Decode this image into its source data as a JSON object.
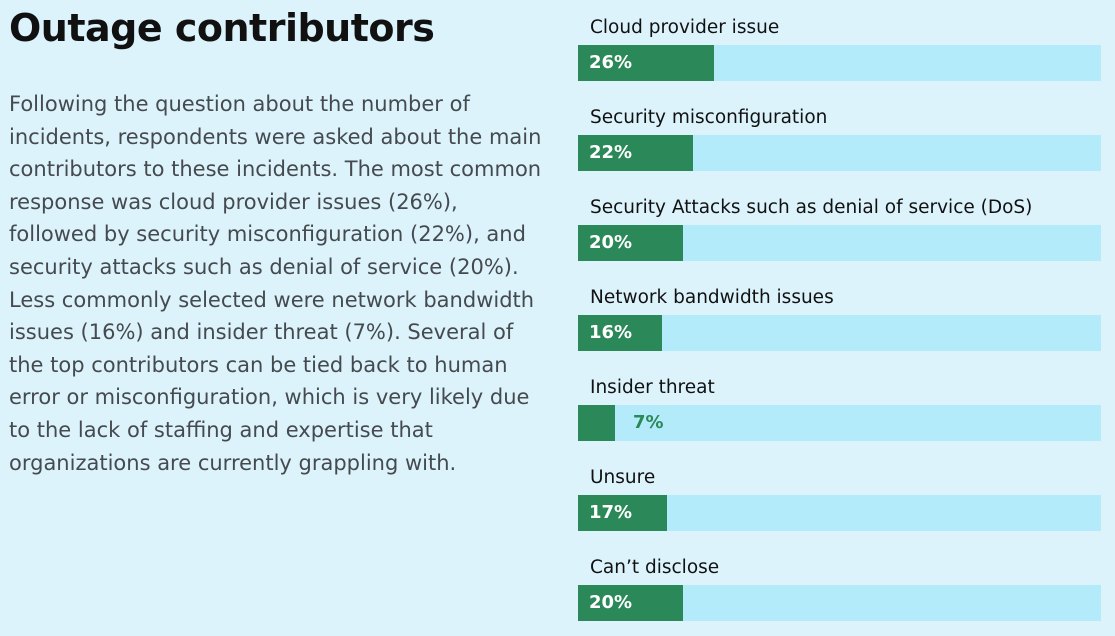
{
  "page": {
    "title": "Outage contributors",
    "body": "Following the question about the number of incidents, respondents were asked about the main contributors to these incidents. The most common response was cloud provider issues (26%), followed by security misconfiguration (22%), and security attacks such as denial of service (20%). Less commonly selected were network bandwidth issues (16%) and insider threat (7%). Several of the top contributors can be tied back to human error or misconfiguration, which is very likely due to the lack of staffing and expertise that organizations are currently grappling with."
  },
  "colors": {
    "background": "#dcf3fc",
    "bar": "#2b8858",
    "track": "#b4ebfb",
    "text": "#111111",
    "body_text": "#454a4e"
  },
  "chart_data": {
    "type": "bar",
    "orientation": "horizontal",
    "categories": [
      "Cloud provider issue",
      "Security misconfiguration",
      "Security Attacks such as denial of service (DoS)",
      "Network bandwidth issues",
      "Insider threat",
      "Unsure",
      "Can’t disclose"
    ],
    "values": [
      26,
      22,
      20,
      16,
      7,
      17,
      20
    ],
    "value_labels": [
      "26%",
      "22%",
      "20%",
      "16%",
      "7%",
      "17%",
      "20%"
    ],
    "xlim": [
      0,
      100
    ],
    "unit": "%",
    "grid": false,
    "legend": "none"
  }
}
